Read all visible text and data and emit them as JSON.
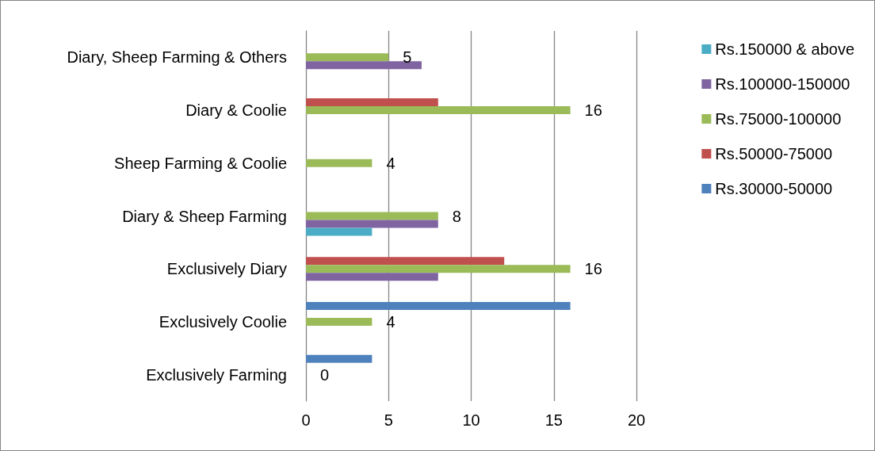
{
  "chart_data": {
    "type": "bar",
    "orientation": "horizontal",
    "categories": [
      "Diary, Sheep Farming & Others",
      "Diary & Coolie",
      "Sheep Farming & Coolie",
      "Diary & Sheep Farming",
      "Exclusively Diary",
      "Exclusively Coolie",
      "Exclusively Farming"
    ],
    "series": [
      {
        "name": "Rs.30000-50000",
        "color": "#4f81bd",
        "values": [
          null,
          null,
          null,
          null,
          null,
          16,
          4
        ]
      },
      {
        "name": "Rs.50000-75000",
        "color": "#c0504d",
        "values": [
          null,
          8,
          null,
          null,
          12,
          null,
          null
        ]
      },
      {
        "name": "Rs.75000-100000",
        "color": "#9bbb59",
        "values": [
          5,
          16,
          4,
          8,
          16,
          4,
          0
        ],
        "value_labels": [
          "5",
          "16",
          "4",
          "8",
          "16",
          "4",
          "0"
        ]
      },
      {
        "name": "Rs.100000-150000",
        "color": "#8064a2",
        "values": [
          7,
          null,
          null,
          8,
          8,
          null,
          null
        ]
      },
      {
        "name": "Rs.150000 & above",
        "color": "#4bacc6",
        "values": [
          null,
          null,
          null,
          4,
          null,
          null,
          null
        ]
      }
    ],
    "xlim": [
      0,
      20
    ],
    "xticks": [
      0,
      5,
      10,
      15,
      20
    ],
    "grid": "x",
    "legend": "right"
  }
}
